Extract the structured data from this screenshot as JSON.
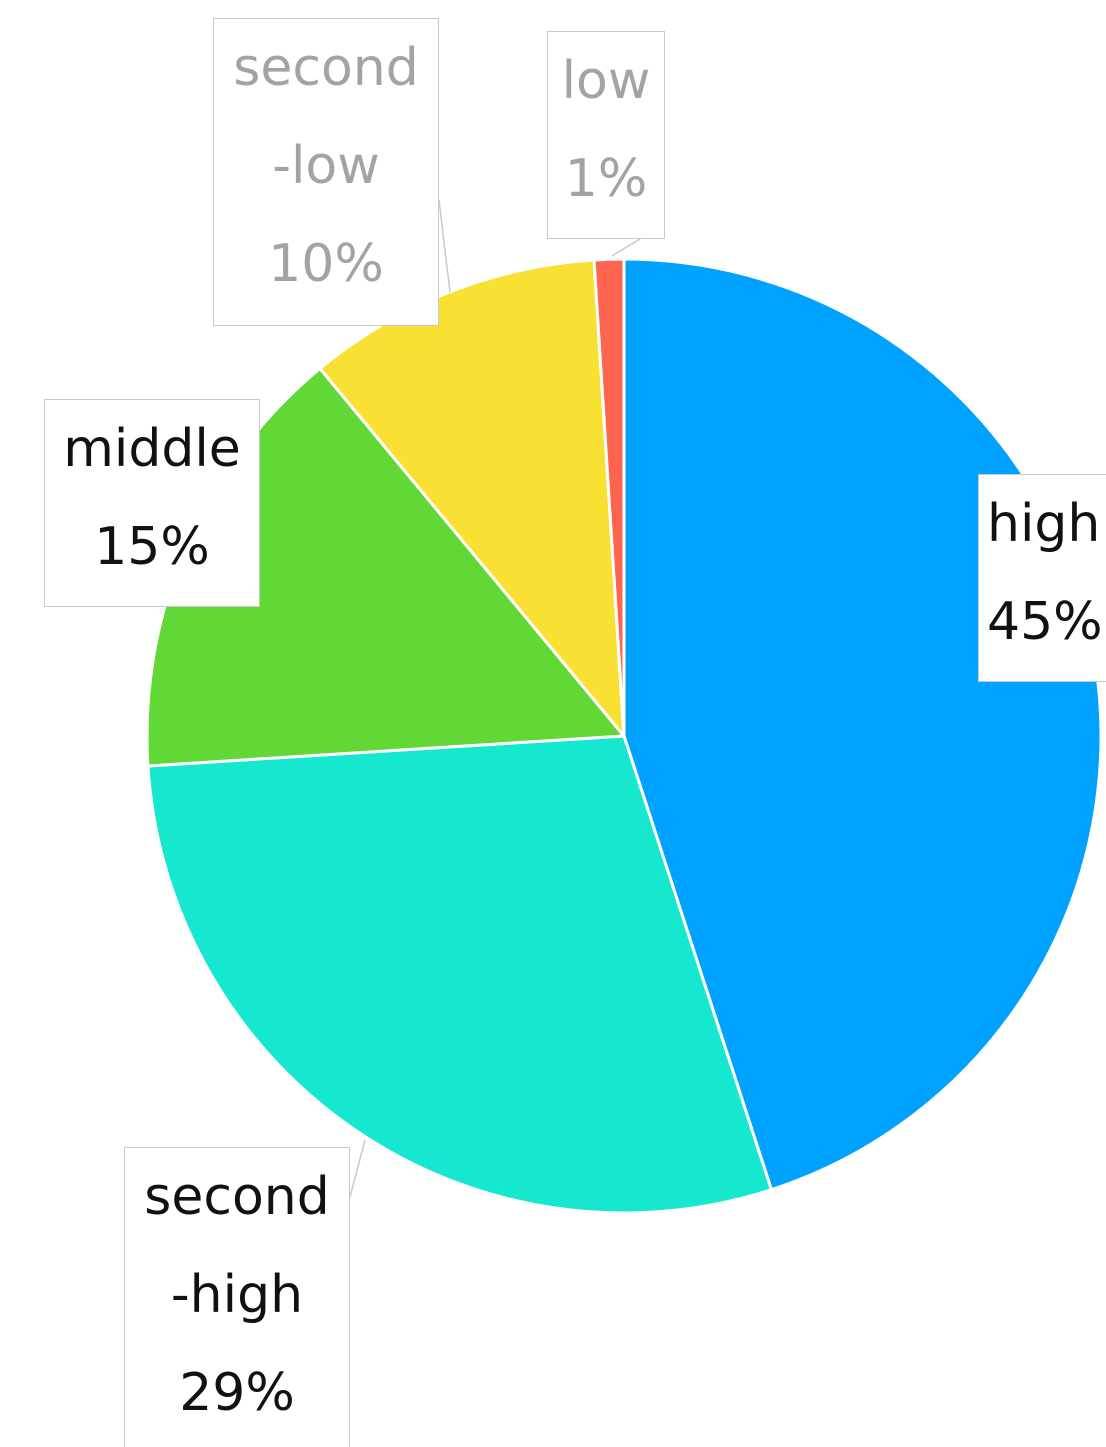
{
  "chart_data": {
    "type": "pie",
    "title": "",
    "series": [
      {
        "name": "",
        "slices": [
          {
            "label": "high",
            "label_lines": [
              "high",
              "45%"
            ],
            "percent": "45%",
            "value": 45,
            "color": "#00a2ff"
          },
          {
            "label": "second-high",
            "label_lines": [
              "second",
              "-high",
              "29%"
            ],
            "percent": "29%",
            "value": 29,
            "color": "#16e7cf"
          },
          {
            "label": "middle",
            "label_lines": [
              "middle",
              "15%"
            ],
            "percent": "15%",
            "value": 15,
            "color": "#61d836"
          },
          {
            "label": "second-low",
            "label_lines": [
              "second",
              "-low",
              "10%"
            ],
            "percent": "10%",
            "value": 10,
            "color": "#f8e133"
          },
          {
            "label": "low",
            "label_lines": [
              "low",
              "1%"
            ],
            "percent": "1%",
            "value": 1,
            "color": "#ff644e"
          }
        ]
      }
    ],
    "start_angle": "12 o'clock",
    "direction": "clockwise",
    "slice_separator_color": "#ffffff",
    "legend": "none",
    "label_style": "callout boxes"
  },
  "colors": {
    "title_fragment": "#1a2ea8",
    "callout_border": "#c9c9c9",
    "callout_text_dark": "#111111",
    "callout_text_dim": "#a3a3a3"
  }
}
